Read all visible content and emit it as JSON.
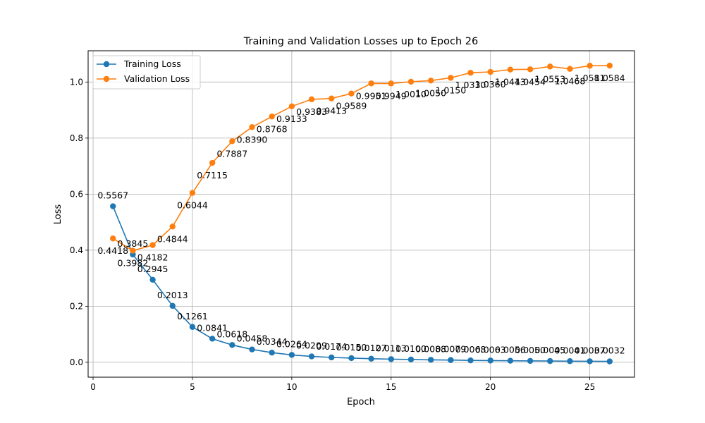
{
  "chart_data": {
    "type": "line",
    "title": "Training and Validation Losses up to Epoch 26",
    "xlabel": "Epoch",
    "ylabel": "Loss",
    "xlim": [
      -0.25,
      27.25
    ],
    "ylim": [
      -0.0531,
      1.1115
    ],
    "x_ticks": [
      0,
      5,
      10,
      15,
      20,
      25
    ],
    "y_ticks": [
      0.0,
      0.2,
      0.4,
      0.6,
      0.8,
      1.0
    ],
    "x_tick_labels": [
      "0",
      "5",
      "10",
      "15",
      "20",
      "25"
    ],
    "y_tick_labels": [
      "0.0",
      "0.2",
      "0.4",
      "0.6",
      "0.8",
      "1.0"
    ],
    "grid": true,
    "legend_position": "top-left",
    "x": [
      1,
      2,
      3,
      4,
      5,
      6,
      7,
      8,
      9,
      10,
      11,
      12,
      13,
      14,
      15,
      16,
      17,
      18,
      19,
      20,
      21,
      22,
      23,
      24,
      25,
      26
    ],
    "series": [
      {
        "name": "Training Loss",
        "color": "#1f77b4",
        "values": [
          0.5567,
          0.3845,
          0.2945,
          0.2013,
          0.1261,
          0.0841,
          0.0618,
          0.0458,
          0.0344,
          0.0264,
          0.0209,
          0.0174,
          0.015,
          0.0127,
          0.0113,
          0.01,
          0.0088,
          0.0079,
          0.0068,
          0.0063,
          0.0056,
          0.005,
          0.0045,
          0.0041,
          0.0037,
          0.0032
        ],
        "labels": [
          "0.5567",
          "0.3845",
          "0.2945",
          "0.2013",
          "0.1261",
          "0.0841",
          "0.0618",
          "0.0458",
          "0.0344",
          "0.0264",
          "0.0209",
          "0.0174",
          "0.0150",
          "0.0127",
          "0.0113",
          "0.0100",
          "0.0088",
          "0.0079",
          "0.0068",
          "0.0063",
          "0.0056",
          "0.0050",
          "0.0045",
          "0.0041",
          "0.0037",
          "0.0032"
        ]
      },
      {
        "name": "Validation Loss",
        "color": "#ff7f0e",
        "values": [
          0.4418,
          0.3982,
          0.4182,
          0.4844,
          0.6044,
          0.7115,
          0.7887,
          0.839,
          0.8768,
          0.9133,
          0.9383,
          0.9413,
          0.9589,
          0.9951,
          0.9949,
          1.001,
          1.005,
          1.015,
          1.033,
          1.036,
          1.0443,
          1.0454,
          1.0553,
          1.0468,
          1.0581,
          1.0584
        ],
        "labels": [
          "0.4418",
          "0.3982",
          "0.4182",
          "0.4844",
          "0.6044",
          "0.7115",
          "0.7887",
          "0.8390",
          "0.8768",
          "0.9133",
          "0.9383",
          "0.9413",
          "0.9589",
          "0.9951",
          "0.9949",
          "1.0010",
          "1.0050",
          "1.0150",
          "1.0330",
          "1.0360",
          "1.0443",
          "1.0454",
          "1.0553",
          "1.0468",
          "1.0581",
          "1.0584"
        ]
      }
    ]
  }
}
